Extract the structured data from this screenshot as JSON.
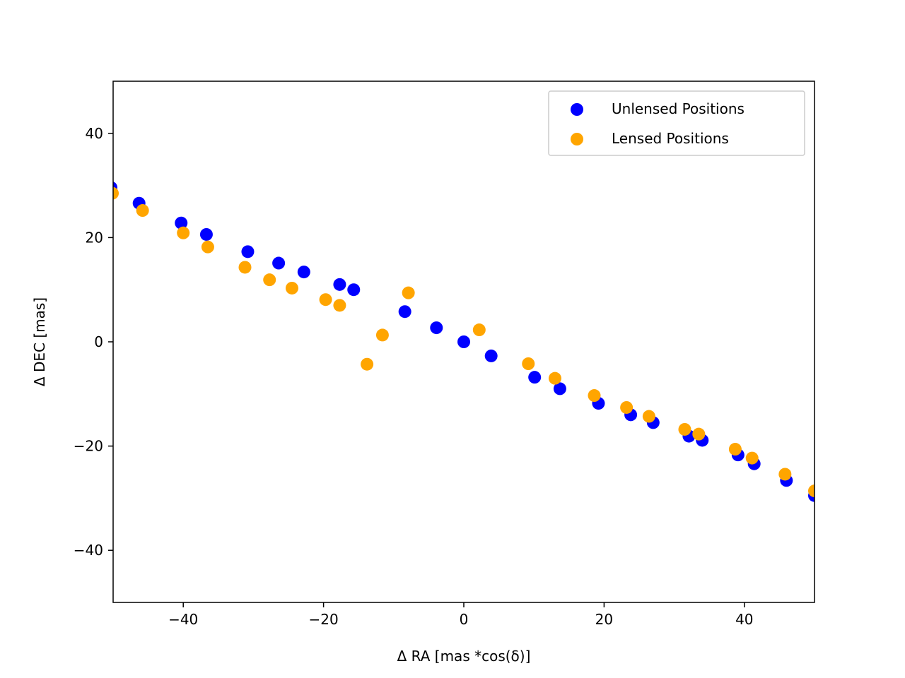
{
  "chart_data": {
    "type": "scatter",
    "xlabel": "Δ RA [mas *cos(δ)]",
    "ylabel": "Δ DEC [mas]",
    "xlim": [
      -50,
      50
    ],
    "ylim": [
      -50,
      50
    ],
    "xticks": [
      -40,
      -20,
      0,
      20,
      40
    ],
    "yticks": [
      -40,
      -20,
      0,
      20,
      40
    ],
    "xtick_labels": [
      "−40",
      "−20",
      "0",
      "20",
      "40"
    ],
    "ytick_labels": [
      "−40",
      "−20",
      "0",
      "20",
      "40"
    ],
    "grid": false,
    "legend_position": "top-right",
    "series": [
      {
        "name": "Unlensed Positions",
        "color": "#0000ff",
        "x": [
          -50.3,
          -46.3,
          -40.3,
          -36.7,
          -30.8,
          -26.4,
          -22.8,
          -17.7,
          -15.7,
          -8.4,
          -3.9,
          0.0,
          3.9,
          10.1,
          13.7,
          19.2,
          23.8,
          27.0,
          32.1,
          34.0,
          39.1,
          41.4,
          46.0,
          50.0
        ],
        "y": [
          29.6,
          26.6,
          22.8,
          20.6,
          17.3,
          15.1,
          13.4,
          11.0,
          10.0,
          5.8,
          2.7,
          0.0,
          -2.7,
          -6.8,
          -9.0,
          -11.8,
          -14.0,
          -15.5,
          -18.1,
          -18.9,
          -21.7,
          -23.4,
          -26.6,
          -29.5
        ]
      },
      {
        "name": "Lensed Positions",
        "color": "#ffa500",
        "x": [
          -50.1,
          -45.8,
          -40.0,
          -36.5,
          -31.2,
          -27.7,
          -24.5,
          -19.7,
          -17.7,
          -13.8,
          -11.6,
          -7.9,
          2.2,
          9.2,
          13.0,
          18.6,
          23.2,
          26.4,
          31.5,
          33.5,
          38.7,
          41.1,
          45.8,
          50.0
        ],
        "y": [
          28.5,
          25.2,
          20.9,
          18.2,
          14.3,
          11.9,
          10.3,
          8.1,
          7.0,
          -4.3,
          1.3,
          9.4,
          2.3,
          -4.2,
          -7.0,
          -10.3,
          -12.6,
          -14.3,
          -16.8,
          -17.7,
          -20.6,
          -22.3,
          -25.4,
          -28.6
        ]
      }
    ]
  }
}
